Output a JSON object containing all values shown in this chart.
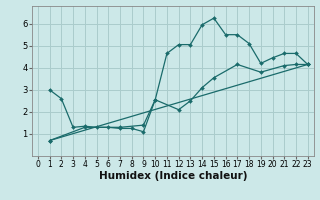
{
  "xlabel": "Humidex (Indice chaleur)",
  "ylabel": "",
  "xlim": [
    -0.5,
    23.5
  ],
  "ylim": [
    0,
    6.8
  ],
  "background_color": "#cce8e8",
  "grid_color": "#aacccc",
  "line_color": "#1a6b6b",
  "curve1_x": [
    1,
    2,
    3,
    4,
    5,
    6,
    7,
    8,
    9,
    10,
    11,
    12,
    13,
    14,
    15,
    16,
    17,
    18,
    19,
    20,
    21,
    22,
    23
  ],
  "curve1_y": [
    3.0,
    2.6,
    1.3,
    1.35,
    1.3,
    1.3,
    1.25,
    1.25,
    1.1,
    2.55,
    4.65,
    5.05,
    5.05,
    5.95,
    6.25,
    5.5,
    5.5,
    5.1,
    4.2,
    4.45,
    4.65,
    4.65,
    4.15
  ],
  "curve2_x": [
    1,
    4,
    7,
    9,
    10,
    12,
    13,
    14,
    15,
    17,
    19,
    21,
    22,
    23
  ],
  "curve2_y": [
    0.7,
    1.3,
    1.3,
    1.4,
    2.55,
    2.1,
    2.5,
    3.1,
    3.55,
    4.15,
    3.8,
    4.1,
    4.15,
    4.15
  ],
  "curve3_x": [
    1,
    23
  ],
  "curve3_y": [
    0.7,
    4.15
  ],
  "xticks": [
    0,
    1,
    2,
    3,
    4,
    5,
    6,
    7,
    8,
    9,
    10,
    11,
    12,
    13,
    14,
    15,
    16,
    17,
    18,
    19,
    20,
    21,
    22,
    23
  ],
  "yticks": [
    1,
    2,
    3,
    4,
    5,
    6
  ],
  "tick_fontsize": 5.5,
  "label_fontsize": 7.5
}
